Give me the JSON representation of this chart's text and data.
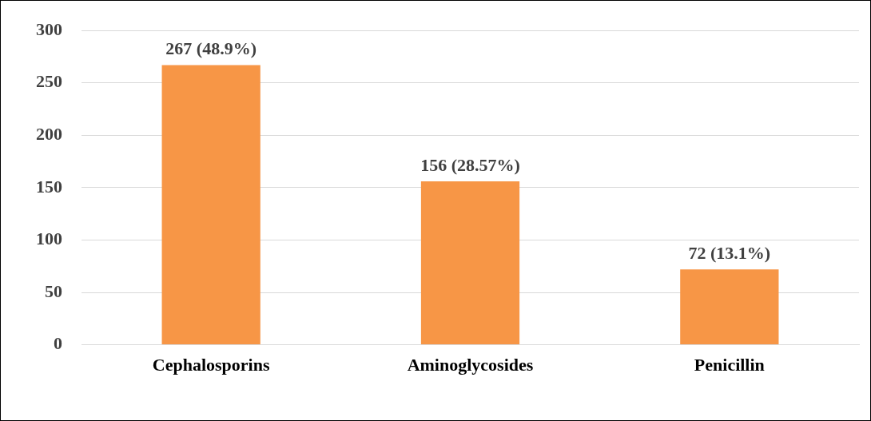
{
  "chart_data": {
    "type": "bar",
    "categories": [
      "Cephalosporins",
      "Aminoglycosides",
      "Penicillin"
    ],
    "values": [
      267,
      156,
      72
    ],
    "value_labels": [
      "267 (48.9%)",
      "156 (28.57%)",
      "72 (13.1%)"
    ],
    "color": "#f79646",
    "ylim": [
      0,
      300
    ],
    "yticks": [
      0,
      50,
      100,
      150,
      200,
      250,
      300
    ],
    "grid": "y",
    "legend": false
  }
}
